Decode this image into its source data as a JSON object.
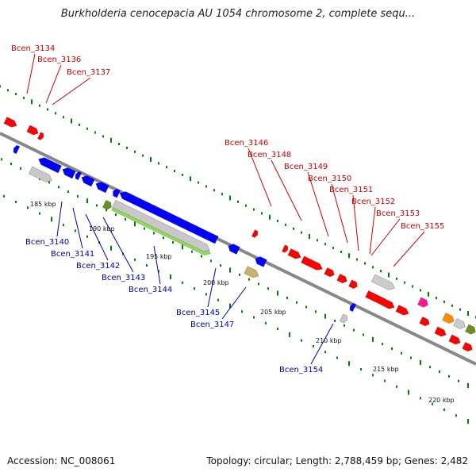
{
  "title": "Burkholderia cenocepacia AU 1054 chromosome 2, complete sequ...",
  "footer": {
    "accession": "Accession: NC_008061",
    "summary": "Topology: circular; Length: 2,788,459 bp; Genes: 2,482"
  },
  "colors": {
    "forward_gene": "#ff0000",
    "reverse_gene": "#0000ff",
    "forward_label": "#cc0000",
    "reverse_label": "#0000aa",
    "backbone": "#808080",
    "tick": "#008000"
  },
  "scale_labels": [
    "185 kbp",
    "190 kbp",
    "195 kbp",
    "200 kbp",
    "205 kbp",
    "210 kbp",
    "215 kbp",
    "220 kbp"
  ],
  "forward_labels": [
    "Bcen_3134",
    "Bcen_3136",
    "Bcen_3137",
    "Bcen_3146",
    "Bcen_3148",
    "Bcen_3149",
    "Bcen_3150",
    "Bcen_3151",
    "Bcen_3152",
    "Bcen_3153",
    "Bcen_3155"
  ],
  "reverse_labels": [
    "Bcen_3140",
    "Bcen_3141",
    "Bcen_3142",
    "Bcen_3143",
    "Bcen_3144",
    "Bcen_3145",
    "Bcen_3147",
    "Bcen_3154"
  ]
}
